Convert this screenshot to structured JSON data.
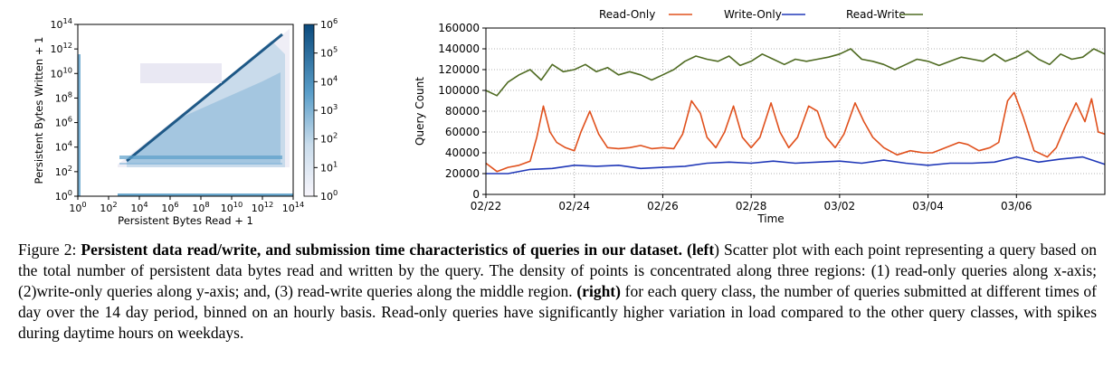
{
  "chart_data": [
    {
      "type": "heatmap",
      "xlabel": "Persistent Bytes Read + 1",
      "ylabel": "Persistent Bytes Written + 1",
      "x_scale": "log",
      "y_scale": "log",
      "xlim": [
        1,
        100000000000000
      ],
      "ylim": [
        1,
        100000000000000
      ],
      "x_ticks": [
        {
          "value": 1,
          "base": "10",
          "exp": "0"
        },
        {
          "value": 100,
          "base": "10",
          "exp": "2"
        },
        {
          "value": 10000,
          "base": "10",
          "exp": "4"
        },
        {
          "value": 1000000,
          "base": "10",
          "exp": "6"
        },
        {
          "value": 100000000,
          "base": "10",
          "exp": "8"
        },
        {
          "value": 10000000000,
          "base": "10",
          "exp": "10"
        },
        {
          "value": 1000000000000,
          "base": "10",
          "exp": "12"
        },
        {
          "value": 100000000000000,
          "base": "10",
          "exp": "14"
        }
      ],
      "y_ticks": [
        {
          "value": 1,
          "base": "10",
          "exp": "0"
        },
        {
          "value": 100,
          "base": "10",
          "exp": "2"
        },
        {
          "value": 10000,
          "base": "10",
          "exp": "4"
        },
        {
          "value": 1000000,
          "base": "10",
          "exp": "6"
        },
        {
          "value": 100000000,
          "base": "10",
          "exp": "8"
        },
        {
          "value": 10000000000,
          "base": "10",
          "exp": "10"
        },
        {
          "value": 1000000000000,
          "base": "10",
          "exp": "12"
        },
        {
          "value": 100000000000000,
          "base": "10",
          "exp": "14"
        }
      ],
      "colorbar": {
        "scale": "log",
        "range": [
          1,
          1000000
        ],
        "ticks": [
          {
            "value": 1,
            "base": "10",
            "exp": "0"
          },
          {
            "value": 10,
            "base": "10",
            "exp": "1"
          },
          {
            "value": 100,
            "base": "10",
            "exp": "2"
          },
          {
            "value": 1000,
            "base": "10",
            "exp": "3"
          },
          {
            "value": 10000,
            "base": "10",
            "exp": "4"
          },
          {
            "value": 100000,
            "base": "10",
            "exp": "5"
          },
          {
            "value": 1000000,
            "base": "10",
            "exp": "6"
          }
        ],
        "colors": [
          "#f7f5fb",
          "#0b4a7c"
        ]
      },
      "regions": [
        {
          "label": "read-only queries along x-axis"
        },
        {
          "label": "write-only queries along y-axis"
        },
        {
          "label": "read-write queries along the middle region"
        }
      ]
    },
    {
      "type": "line",
      "xlabel": "Time",
      "ylabel": "Query Count",
      "ylim": [
        0,
        160000
      ],
      "y_ticks": [
        0,
        20000,
        40000,
        60000,
        80000,
        100000,
        120000,
        140000,
        160000
      ],
      "y_tick_labels": [
        "0",
        "20000",
        "40000",
        "60000",
        "80000",
        "100000",
        "120000",
        "140000",
        "160000"
      ],
      "x_tick_labels": [
        "02/22",
        "02/24",
        "02/26",
        "02/28",
        "03/02",
        "03/04",
        "03/06"
      ],
      "x_ticks_days": [
        0,
        2,
        4,
        6,
        8,
        10,
        12
      ],
      "xlim_days": [
        0,
        14
      ],
      "legend": "top",
      "grid": true,
      "series": [
        {
          "name": "Read-Only",
          "color": "#e0501c",
          "points": [
            [
              0,
              30000
            ],
            [
              0.25,
              22000
            ],
            [
              0.5,
              26000
            ],
            [
              0.75,
              28000
            ],
            [
              1,
              32000
            ],
            [
              1.15,
              55000
            ],
            [
              1.3,
              85000
            ],
            [
              1.45,
              60000
            ],
            [
              1.6,
              50000
            ],
            [
              1.8,
              45000
            ],
            [
              2,
              42000
            ],
            [
              2.15,
              60000
            ],
            [
              2.35,
              80000
            ],
            [
              2.55,
              58000
            ],
            [
              2.75,
              45000
            ],
            [
              3,
              44000
            ],
            [
              3.25,
              45000
            ],
            [
              3.5,
              47000
            ],
            [
              3.75,
              44000
            ],
            [
              4,
              45000
            ],
            [
              4.25,
              44000
            ],
            [
              4.45,
              58000
            ],
            [
              4.65,
              90000
            ],
            [
              4.85,
              78000
            ],
            [
              5,
              55000
            ],
            [
              5.2,
              45000
            ],
            [
              5.4,
              60000
            ],
            [
              5.6,
              85000
            ],
            [
              5.8,
              55000
            ],
            [
              6,
              45000
            ],
            [
              6.2,
              55000
            ],
            [
              6.45,
              88000
            ],
            [
              6.65,
              60000
            ],
            [
              6.85,
              45000
            ],
            [
              7.05,
              55000
            ],
            [
              7.3,
              85000
            ],
            [
              7.5,
              80000
            ],
            [
              7.7,
              55000
            ],
            [
              7.9,
              45000
            ],
            [
              8.1,
              58000
            ],
            [
              8.35,
              88000
            ],
            [
              8.55,
              70000
            ],
            [
              8.75,
              55000
            ],
            [
              9,
              45000
            ],
            [
              9.3,
              38000
            ],
            [
              9.6,
              42000
            ],
            [
              9.9,
              40000
            ],
            [
              10.1,
              40000
            ],
            [
              10.4,
              45000
            ],
            [
              10.7,
              50000
            ],
            [
              10.9,
              48000
            ],
            [
              11.15,
              42000
            ],
            [
              11.4,
              45000
            ],
            [
              11.6,
              50000
            ],
            [
              11.8,
              90000
            ],
            [
              11.95,
              98000
            ],
            [
              12.15,
              75000
            ],
            [
              12.4,
              42000
            ],
            [
              12.7,
              36000
            ],
            [
              12.9,
              45000
            ],
            [
              13.1,
              65000
            ],
            [
              13.35,
              88000
            ],
            [
              13.55,
              70000
            ],
            [
              13.7,
              92000
            ],
            [
              13.85,
              60000
            ],
            [
              14,
              58000
            ]
          ]
        },
        {
          "name": "Write-Only",
          "color": "#2038b8",
          "points": [
            [
              0,
              20000
            ],
            [
              0.5,
              20000
            ],
            [
              1,
              24000
            ],
            [
              1.5,
              25000
            ],
            [
              2,
              28000
            ],
            [
              2.5,
              27000
            ],
            [
              3,
              28000
            ],
            [
              3.5,
              25000
            ],
            [
              4,
              26000
            ],
            [
              4.5,
              27000
            ],
            [
              5,
              30000
            ],
            [
              5.5,
              31000
            ],
            [
              6,
              30000
            ],
            [
              6.5,
              32000
            ],
            [
              7,
              30000
            ],
            [
              7.5,
              31000
            ],
            [
              8,
              32000
            ],
            [
              8.5,
              30000
            ],
            [
              9,
              33000
            ],
            [
              9.5,
              30000
            ],
            [
              10,
              28000
            ],
            [
              10.5,
              30000
            ],
            [
              11,
              30000
            ],
            [
              11.5,
              31000
            ],
            [
              12,
              36000
            ],
            [
              12.5,
              31000
            ],
            [
              13,
              34000
            ],
            [
              13.5,
              36000
            ],
            [
              14,
              29000
            ]
          ]
        },
        {
          "name": "Read-Write",
          "color": "#4f6b22",
          "points": [
            [
              0,
              100000
            ],
            [
              0.25,
              95000
            ],
            [
              0.5,
              108000
            ],
            [
              0.75,
              115000
            ],
            [
              1,
              120000
            ],
            [
              1.25,
              110000
            ],
            [
              1.5,
              125000
            ],
            [
              1.75,
              118000
            ],
            [
              2,
              120000
            ],
            [
              2.25,
              125000
            ],
            [
              2.5,
              118000
            ],
            [
              2.75,
              122000
            ],
            [
              3,
              115000
            ],
            [
              3.25,
              118000
            ],
            [
              3.5,
              115000
            ],
            [
              3.75,
              110000
            ],
            [
              4,
              115000
            ],
            [
              4.25,
              120000
            ],
            [
              4.5,
              128000
            ],
            [
              4.75,
              133000
            ],
            [
              5,
              130000
            ],
            [
              5.25,
              128000
            ],
            [
              5.5,
              133000
            ],
            [
              5.75,
              124000
            ],
            [
              6,
              128000
            ],
            [
              6.25,
              135000
            ],
            [
              6.5,
              130000
            ],
            [
              6.75,
              125000
            ],
            [
              7,
              130000
            ],
            [
              7.25,
              128000
            ],
            [
              7.5,
              130000
            ],
            [
              7.75,
              132000
            ],
            [
              8,
              135000
            ],
            [
              8.25,
              140000
            ],
            [
              8.5,
              130000
            ],
            [
              8.75,
              128000
            ],
            [
              9,
              125000
            ],
            [
              9.25,
              120000
            ],
            [
              9.5,
              125000
            ],
            [
              9.75,
              130000
            ],
            [
              10,
              128000
            ],
            [
              10.25,
              124000
            ],
            [
              10.5,
              128000
            ],
            [
              10.75,
              132000
            ],
            [
              11,
              130000
            ],
            [
              11.25,
              128000
            ],
            [
              11.5,
              135000
            ],
            [
              11.75,
              128000
            ],
            [
              12,
              132000
            ],
            [
              12.25,
              138000
            ],
            [
              12.5,
              130000
            ],
            [
              12.75,
              125000
            ],
            [
              13,
              135000
            ],
            [
              13.25,
              130000
            ],
            [
              13.5,
              132000
            ],
            [
              13.75,
              140000
            ],
            [
              14,
              135000
            ]
          ]
        }
      ]
    }
  ],
  "caption": {
    "label": "Figure 2: ",
    "bold_title": "Persistent data read/write, and submission time characteristics of queries in our dataset.",
    "left_tag": "(left",
    "left_text": ") Scatter plot with each point representing a query based on the total number of persistent data bytes read and written by the query. The density of points is concentrated along three regions: (1) read-only queries along x-axis; (2)write-only queries along y-axis; and, (3) read-write queries along the middle region. ",
    "right_tag": "(right)",
    "right_text": " for each query class, the number of queries submitted at different times of day over the 14 day period, binned on an hourly basis. Read-only queries have significantly higher variation in load compared to the other query classes, with spikes during daytime hours on weekdays."
  }
}
